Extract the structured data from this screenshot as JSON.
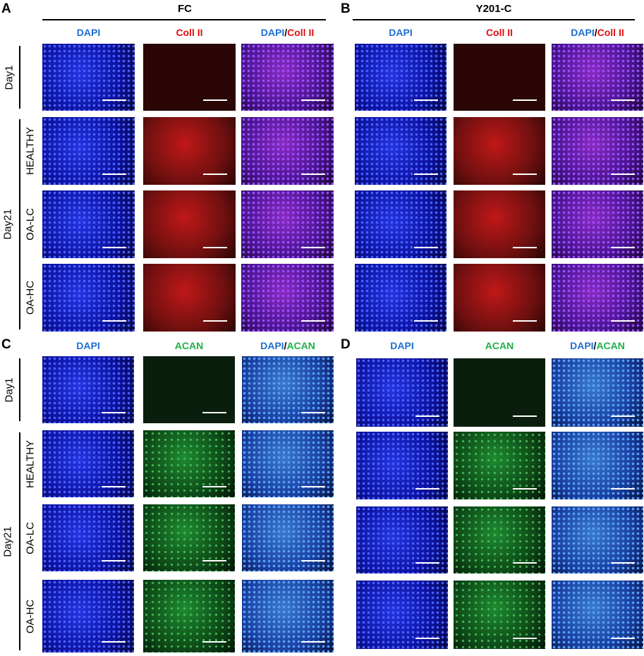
{
  "panels": [
    {
      "letter": "A",
      "title": "FC",
      "columns": [
        [
          {
            "text": "DAPI",
            "color": "#1f6fd1"
          }
        ],
        [
          {
            "text": "Coll II",
            "color": "#e01010"
          }
        ],
        [
          {
            "text": "DAPI",
            "color": "#1f6fd1"
          },
          {
            "text": "/",
            "color": "#000000"
          },
          {
            "text": "Coll II",
            "color": "#e01010"
          }
        ]
      ],
      "row_labels": {
        "day1": "Day1",
        "day21": "Day21",
        "rows": [
          "HEALTHY",
          "OA-LC",
          "OA-HC"
        ]
      }
    },
    {
      "letter": "B",
      "title": "Y201-C",
      "columns": [
        [
          {
            "text": "DAPI",
            "color": "#1f6fd1"
          }
        ],
        [
          {
            "text": "Coll II",
            "color": "#e01010"
          }
        ],
        [
          {
            "text": "DAPI",
            "color": "#1f6fd1"
          },
          {
            "text": "/",
            "color": "#000000"
          },
          {
            "text": "Coll II",
            "color": "#e01010"
          }
        ]
      ]
    },
    {
      "letter": "C",
      "columns": [
        [
          {
            "text": "DAPI",
            "color": "#1f6fd1"
          }
        ],
        [
          {
            "text": "ACAN",
            "color": "#1fb04a"
          }
        ],
        [
          {
            "text": "DAPI",
            "color": "#1f6fd1"
          },
          {
            "text": "/",
            "color": "#000000"
          },
          {
            "text": "ACAN",
            "color": "#1fb04a"
          }
        ]
      ],
      "row_labels": {
        "day1": "Day1",
        "day21": "Day21",
        "rows": [
          "HEALTHY",
          "OA-LC",
          "OA-HC"
        ]
      }
    },
    {
      "letter": "D",
      "columns": [
        [
          {
            "text": "DAPI",
            "color": "#1f6fd1"
          }
        ],
        [
          {
            "text": "ACAN",
            "color": "#1fb04a"
          }
        ],
        [
          {
            "text": "DAPI",
            "color": "#1f6fd1"
          },
          {
            "text": "/",
            "color": "#000000"
          },
          {
            "text": "ACAN",
            "color": "#1fb04a"
          }
        ]
      ]
    }
  ]
}
